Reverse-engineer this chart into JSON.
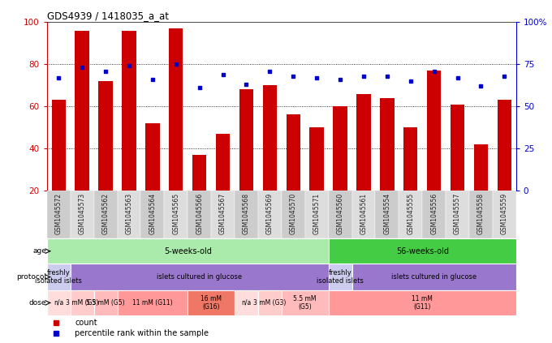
{
  "title": "GDS4939 / 1418035_a_at",
  "samples": [
    "GSM1045572",
    "GSM1045573",
    "GSM1045562",
    "GSM1045563",
    "GSM1045564",
    "GSM1045565",
    "GSM1045566",
    "GSM1045567",
    "GSM1045568",
    "GSM1045569",
    "GSM1045570",
    "GSM1045571",
    "GSM1045560",
    "GSM1045561",
    "GSM1045554",
    "GSM1045555",
    "GSM1045556",
    "GSM1045557",
    "GSM1045558",
    "GSM1045559"
  ],
  "count_values": [
    63,
    96,
    72,
    96,
    52,
    97,
    37,
    47,
    68,
    70,
    56,
    50,
    60,
    66,
    64,
    50,
    77,
    61,
    42,
    63
  ],
  "percentile_values": [
    67,
    73,
    71,
    74,
    66,
    75,
    61,
    69,
    63,
    71,
    68,
    67,
    66,
    68,
    68,
    65,
    71,
    67,
    62,
    68
  ],
  "bar_color": "#cc0000",
  "dot_color": "#0000cc",
  "left_axis_color": "#cc0000",
  "right_axis_color": "#0000cc",
  "left_ylim": [
    20,
    100
  ],
  "right_ylim": [
    0,
    100
  ],
  "left_yticks": [
    20,
    40,
    60,
    80,
    100
  ],
  "right_yticks": [
    0,
    25,
    50,
    75,
    100
  ],
  "right_yticklabels": [
    "0",
    "25",
    "50",
    "75",
    "100%"
  ],
  "grid_dotted_at": [
    40,
    60,
    80
  ],
  "age_groups": [
    {
      "label": "5-weeks-old",
      "start": 0,
      "end": 11,
      "color": "#aaeaaa"
    },
    {
      "label": "56-weeks-old",
      "start": 12,
      "end": 19,
      "color": "#44cc44"
    }
  ],
  "protocol_groups": [
    {
      "label": "freshly\nisolated islets",
      "start": 0,
      "end": 0,
      "color": "#ccccee"
    },
    {
      "label": "islets cultured in glucose",
      "start": 1,
      "end": 11,
      "color": "#9977cc"
    },
    {
      "label": "freshly\nisolated islets",
      "start": 12,
      "end": 12,
      "color": "#ccccee"
    },
    {
      "label": "islets cultured in glucose",
      "start": 13,
      "end": 19,
      "color": "#9977cc"
    }
  ],
  "dose_groups": [
    {
      "label": "n/a",
      "start": 0,
      "end": 0,
      "color": "#ffdddd"
    },
    {
      "label": "3 mM (G3)",
      "start": 1,
      "end": 1,
      "color": "#ffcccc"
    },
    {
      "label": "5.5 mM (G5)",
      "start": 2,
      "end": 2,
      "color": "#ffbbbb"
    },
    {
      "label": "11 mM (G11)",
      "start": 3,
      "end": 5,
      "color": "#ff9999"
    },
    {
      "label": "16 mM\n(G16)",
      "start": 6,
      "end": 7,
      "color": "#ee7766"
    },
    {
      "label": "n/a",
      "start": 8,
      "end": 8,
      "color": "#ffdddd"
    },
    {
      "label": "3 mM (G3)",
      "start": 9,
      "end": 9,
      "color": "#ffcccc"
    },
    {
      "label": "5.5 mM\n(G5)",
      "start": 10,
      "end": 11,
      "color": "#ffbbbb"
    },
    {
      "label": "11 mM\n(G11)",
      "start": 12,
      "end": 19,
      "color": "#ff9999"
    }
  ],
  "legend_items": [
    {
      "color": "#cc0000",
      "label": "count"
    },
    {
      "color": "#0000cc",
      "label": "percentile rank within the sample"
    }
  ],
  "bg_color": "#ffffff",
  "tick_bg_color": "#dddddd"
}
